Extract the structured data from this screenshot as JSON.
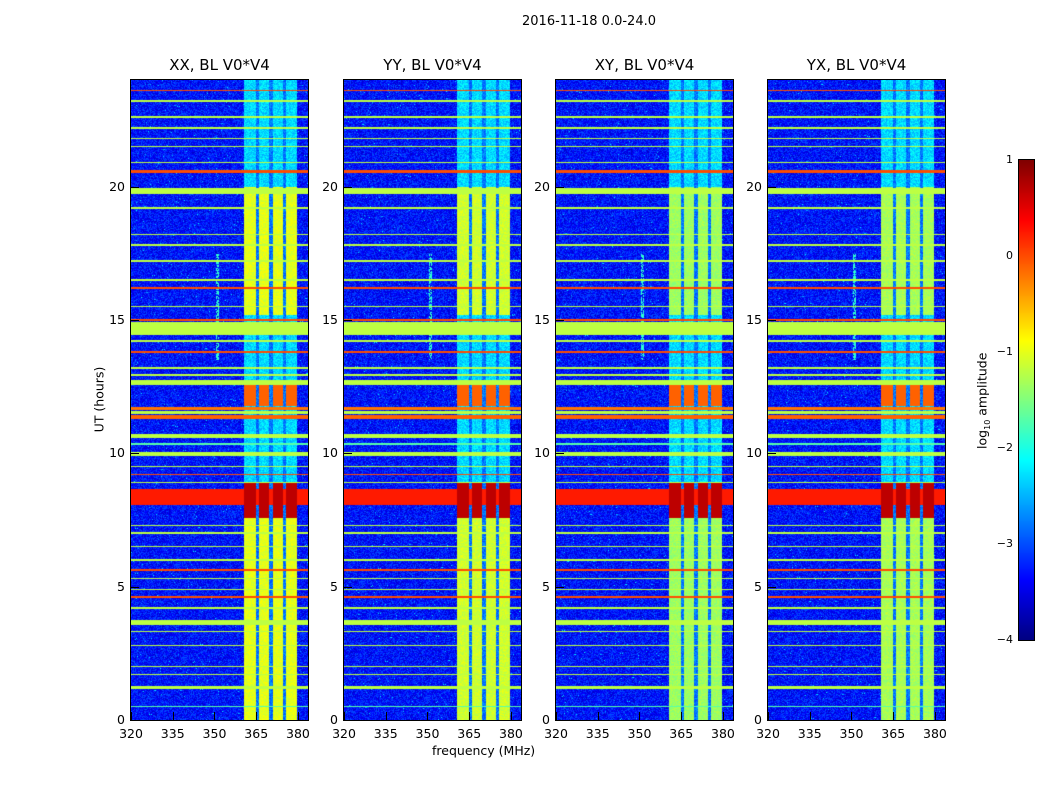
{
  "chart_data": {
    "type": "heatmap",
    "title": "2016-11-18 0.0-24.0",
    "xlabel": "frequency (MHz)",
    "ylabel": "UT (hours)",
    "xlim": [
      320,
      383.6
    ],
    "ylim": [
      0,
      24
    ],
    "xticks": [
      "320",
      "335",
      "350",
      "365",
      "380"
    ],
    "xtick_values": [
      320,
      335,
      350,
      365,
      380
    ],
    "yticks": [
      "0",
      "5",
      "10",
      "15",
      "20"
    ],
    "ytick_values": [
      0,
      5,
      10,
      15,
      20
    ],
    "panels": [
      {
        "title": "XX, BL V0*V4",
        "band_level": -1.0
      },
      {
        "title": "YY, BL V0*V4",
        "band_level": -1.1
      },
      {
        "title": "XY, BL V0*V4",
        "band_level": -1.35
      },
      {
        "title": "YX, BL V0*V4",
        "band_level": -1.3
      }
    ],
    "colorbar": {
      "label": "log10 amplitude",
      "label_main": "log",
      "label_sub": "10",
      "label_rest": " amplitude",
      "range": [
        -4,
        1
      ],
      "ticks": [
        "1",
        "0",
        "−1",
        "−2",
        "−3",
        "−4"
      ],
      "tick_values": [
        1,
        0,
        -1,
        -2,
        -3,
        -4
      ],
      "colormap": "jet"
    },
    "background_level": -3.3,
    "subbands_mhz": [
      [
        360.4,
        364.6
      ],
      [
        365.7,
        369.3
      ],
      [
        370.7,
        374.6
      ],
      [
        375.4,
        379.3
      ]
    ],
    "subband_bright_hours": [
      [
        15.2,
        20.0
      ],
      [
        0.0,
        7.6
      ]
    ],
    "subband_orange_hours": [
      11.8,
      12.6
    ],
    "subband_red_hours": [
      7.6,
      8.9
    ],
    "horizontal_features": [
      [
        14.45,
        14.95,
        -1.2
      ],
      [
        19.75,
        19.95,
        -1.2
      ],
      [
        11.3,
        11.45,
        -0.1
      ],
      [
        11.5,
        11.62,
        -1.2
      ],
      [
        11.65,
        11.75,
        -0.2
      ],
      [
        8.1,
        8.7,
        0.25
      ],
      [
        12.6,
        12.75,
        -1.2
      ],
      [
        12.9,
        13.0,
        -1.2
      ],
      [
        10.6,
        10.75,
        -1.2
      ],
      [
        9.9,
        10.05,
        -1.2
      ],
      [
        10.35,
        10.42,
        -1.7
      ],
      [
        5.6,
        5.7,
        0.0
      ],
      [
        5.3,
        5.36,
        -1.2
      ],
      [
        4.6,
        4.66,
        0.0
      ],
      [
        3.6,
        3.75,
        -1.2
      ],
      [
        1.2,
        1.3,
        -1.2
      ],
      [
        1.7,
        1.76,
        -1.2
      ],
      [
        2.0,
        2.05,
        -1.2
      ],
      [
        0.5,
        0.55,
        -1.7
      ],
      [
        23.6,
        23.65,
        0.0
      ],
      [
        23.2,
        23.25,
        -1.2
      ],
      [
        22.6,
        22.65,
        -1.2
      ],
      [
        22.2,
        22.25,
        -1.2
      ],
      [
        21.8,
        21.85,
        -1.2
      ],
      [
        21.5,
        21.55,
        -1.2
      ],
      [
        20.9,
        20.95,
        -1.2
      ],
      [
        20.55,
        20.65,
        0.0
      ],
      [
        19.2,
        19.25,
        -1.2
      ],
      [
        18.2,
        18.25,
        -1.2
      ],
      [
        17.8,
        17.85,
        -1.2
      ],
      [
        17.2,
        17.25,
        -1.2
      ],
      [
        16.5,
        16.55,
        -1.2
      ],
      [
        16.2,
        16.25,
        0.0
      ],
      [
        15.5,
        15.55,
        -1.2
      ],
      [
        15.0,
        15.05,
        0.0
      ],
      [
        14.2,
        14.25,
        -1.2
      ],
      [
        13.8,
        13.85,
        0.0
      ],
      [
        13.2,
        13.25,
        -1.2
      ],
      [
        9.5,
        9.55,
        -1.2
      ],
      [
        9.2,
        9.25,
        0.0
      ],
      [
        8.9,
        8.95,
        -1.2
      ],
      [
        7.3,
        7.35,
        -1.2
      ],
      [
        7.0,
        7.05,
        -1.2
      ],
      [
        6.5,
        6.55,
        -1.2
      ],
      [
        6.0,
        6.05,
        -1.2
      ],
      [
        4.9,
        4.95,
        -1.2
      ],
      [
        4.2,
        4.25,
        -1.2
      ],
      [
        3.3,
        3.35,
        -1.2
      ],
      [
        2.8,
        2.85,
        -1.2
      ]
    ]
  }
}
